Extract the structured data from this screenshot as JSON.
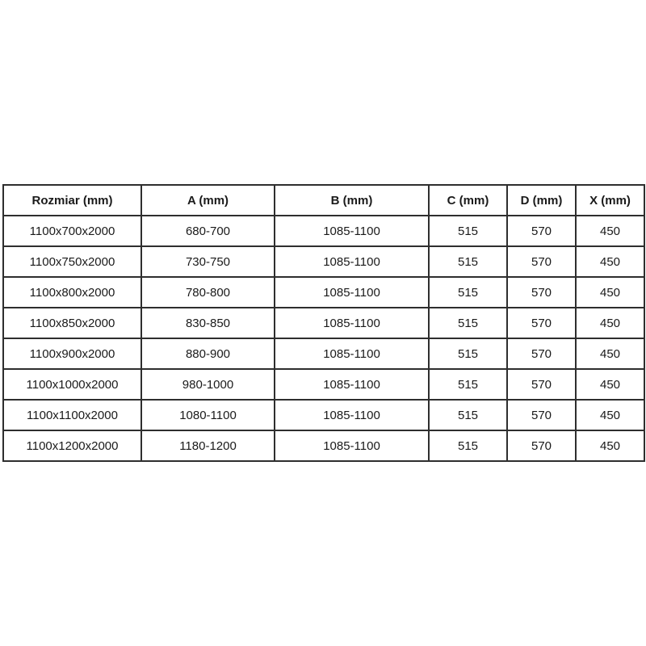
{
  "table": {
    "columns": [
      "Rozmiar (mm)",
      "A (mm)",
      "B (mm)",
      "C (mm)",
      "D (mm)",
      "X (mm)"
    ],
    "rows": [
      [
        "1100x700x2000",
        "680-700",
        "1085-1100",
        "515",
        "570",
        "450"
      ],
      [
        "1100x750x2000",
        "730-750",
        "1085-1100",
        "515",
        "570",
        "450"
      ],
      [
        "1100x800x2000",
        "780-800",
        "1085-1100",
        "515",
        "570",
        "450"
      ],
      [
        "1100x850x2000",
        "830-850",
        "1085-1100",
        "515",
        "570",
        "450"
      ],
      [
        "1100x900x2000",
        "880-900",
        "1085-1100",
        "515",
        "570",
        "450"
      ],
      [
        "1100x1000x2000",
        "980-1000",
        "1085-1100",
        "515",
        "570",
        "450"
      ],
      [
        "1100x1100x2000",
        "1080-1100",
        "1085-1100",
        "515",
        "570",
        "450"
      ],
      [
        "1100x1200x2000",
        "1180-1200",
        "1085-1100",
        "515",
        "570",
        "450"
      ]
    ],
    "colors": {
      "border_outer": "#1f1f1f",
      "border_inner": "#2e2e2e",
      "text": "#1a1a1a",
      "background": "#ffffff"
    }
  },
  "chart_data": {
    "type": "table",
    "title": "",
    "columns": [
      "Rozmiar (mm)",
      "A (mm)",
      "B (mm)",
      "C (mm)",
      "D (mm)",
      "X (mm)"
    ],
    "rows": [
      [
        "1100x700x2000",
        "680-700",
        "1085-1100",
        "515",
        "570",
        "450"
      ],
      [
        "1100x750x2000",
        "730-750",
        "1085-1100",
        "515",
        "570",
        "450"
      ],
      [
        "1100x800x2000",
        "780-800",
        "1085-1100",
        "515",
        "570",
        "450"
      ],
      [
        "1100x850x2000",
        "830-850",
        "1085-1100",
        "515",
        "570",
        "450"
      ],
      [
        "1100x900x2000",
        "880-900",
        "1085-1100",
        "515",
        "570",
        "450"
      ],
      [
        "1100x1000x2000",
        "980-1000",
        "1085-1100",
        "515",
        "570",
        "450"
      ],
      [
        "1100x1100x2000",
        "1080-1100",
        "1085-1100",
        "515",
        "570",
        "450"
      ],
      [
        "1100x1200x2000",
        "1180-1200",
        "1085-1100",
        "515",
        "570",
        "450"
      ]
    ]
  }
}
